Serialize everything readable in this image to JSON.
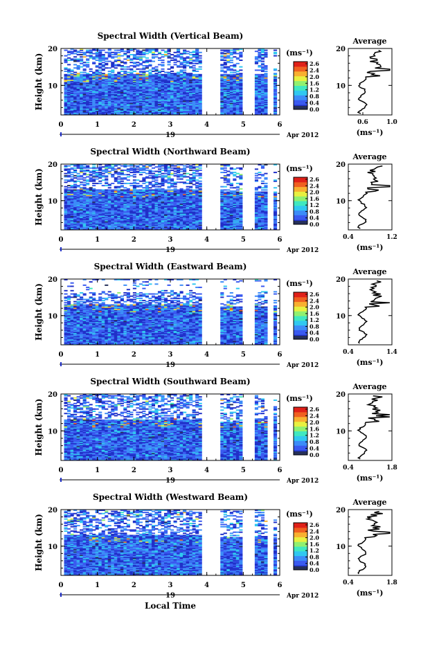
{
  "chart_data": [
    {
      "type": "heatmap",
      "title": "Spectral Width (Vertical Beam)",
      "ylabel": "Height (km)",
      "xlim": [
        0,
        6
      ],
      "ylim": [
        2,
        20
      ],
      "x_ticks": [
        "0",
        "1",
        "2",
        "3",
        "4",
        "5",
        "6"
      ],
      "y_ticks": [
        "10",
        "20"
      ],
      "date_day": "19",
      "date_label": "Apr 2012",
      "colorbar": {
        "unit": "(ms⁻¹)",
        "ticks": [
          "2.6",
          "2.4",
          "2.0",
          "1.6",
          "1.2",
          "0.8",
          "0.4",
          "0.0"
        ]
      },
      "profile": {
        "title": "Average",
        "xlim": [
          0.4,
          1.0
        ],
        "x_ticks": [
          "0.6",
          "1.0"
        ],
        "y_ticks": [
          "10",
          "20"
        ],
        "xlabel": "(ms⁻¹)"
      }
    },
    {
      "type": "heatmap",
      "title": "Spectral Width (Northward Beam)",
      "ylabel": "Height (km)",
      "xlim": [
        0,
        6
      ],
      "ylim": [
        2,
        20
      ],
      "x_ticks": [
        "0",
        "1",
        "2",
        "3",
        "4",
        "5",
        "6"
      ],
      "y_ticks": [
        "10",
        "20"
      ],
      "date_day": "19",
      "date_label": "Apr 2012",
      "colorbar": {
        "unit": "(ms⁻¹)",
        "ticks": [
          "2.6",
          "2.4",
          "2.0",
          "1.6",
          "1.2",
          "0.8",
          "0.4",
          "0.0"
        ]
      },
      "profile": {
        "title": "Average",
        "xlim": [
          0.4,
          1.2
        ],
        "x_ticks": [
          "0.4",
          "1.2"
        ],
        "y_ticks": [
          "10",
          "20"
        ],
        "xlabel": "(ms⁻¹)"
      }
    },
    {
      "type": "heatmap",
      "title": "Spectral Width (Eastward Beam)",
      "ylabel": "Height (km)",
      "xlim": [
        0,
        6
      ],
      "ylim": [
        2,
        20
      ],
      "x_ticks": [
        "0",
        "1",
        "2",
        "3",
        "4",
        "5",
        "6"
      ],
      "y_ticks": [
        "10",
        "20"
      ],
      "date_day": "19",
      "date_label": "Apr 2012",
      "colorbar": {
        "unit": "(ms⁻¹)",
        "ticks": [
          "2.6",
          "2.4",
          "2.0",
          "1.6",
          "1.2",
          "0.8",
          "0.4",
          "0.0"
        ]
      },
      "profile": {
        "title": "Average",
        "xlim": [
          0.4,
          1.4
        ],
        "x_ticks": [
          "0.4",
          "1.4"
        ],
        "y_ticks": [
          "10",
          "20"
        ],
        "xlabel": "(ms⁻¹)"
      }
    },
    {
      "type": "heatmap",
      "title": "Spectral Width (Southward Beam)",
      "ylabel": "Height (km)",
      "xlim": [
        0,
        6
      ],
      "ylim": [
        2,
        20
      ],
      "x_ticks": [
        "0",
        "1",
        "2",
        "3",
        "4",
        "5",
        "6"
      ],
      "y_ticks": [
        "10",
        "20"
      ],
      "date_day": "19",
      "date_label": "Apr 2012",
      "colorbar": {
        "unit": "(ms⁻¹)",
        "ticks": [
          "2.6",
          "2.4",
          "2.0",
          "1.6",
          "1.2",
          "0.8",
          "0.4",
          "0.0"
        ]
      },
      "profile": {
        "title": "Average",
        "xlim": [
          0.4,
          1.8
        ],
        "x_ticks": [
          "0.4",
          "1.8"
        ],
        "y_ticks": [
          "10",
          "20"
        ],
        "xlabel": "(ms⁻¹)"
      }
    },
    {
      "type": "heatmap",
      "title": "Spectral Width (Westward Beam)",
      "ylabel": "Height (km)",
      "xlim": [
        0,
        6
      ],
      "ylim": [
        2,
        20
      ],
      "x_ticks": [
        "0",
        "1",
        "2",
        "3",
        "4",
        "5",
        "6"
      ],
      "y_ticks": [
        "10",
        "20"
      ],
      "date_day": "19",
      "date_label": "Apr 2012",
      "colorbar": {
        "unit": "(ms⁻¹)",
        "ticks": [
          "2.6",
          "2.4",
          "2.0",
          "1.6",
          "1.2",
          "0.8",
          "0.4",
          "0.0"
        ]
      },
      "profile": {
        "title": "Average",
        "xlim": [
          0.4,
          1.8
        ],
        "x_ticks": [
          "0.4",
          "1.8"
        ],
        "y_ticks": [
          "10",
          "20"
        ],
        "xlabel": "(ms⁻¹)"
      },
      "xlabel": "Local Time"
    }
  ],
  "colors": {
    "scale": [
      "#26305a",
      "#2030c8",
      "#3a5af0",
      "#3c8cf8",
      "#30c8f0",
      "#40e8c0",
      "#90f070",
      "#e8f040",
      "#f8b030",
      "#f06020",
      "#e02018"
    ]
  }
}
